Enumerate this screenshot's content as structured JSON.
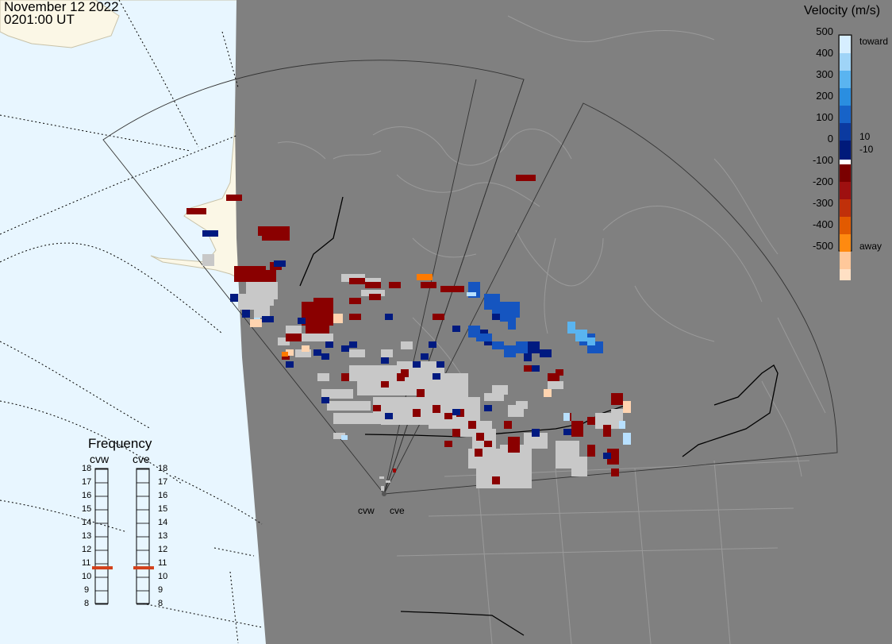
{
  "header": {
    "date": "November 12 2022",
    "time": "0201:00 UT"
  },
  "legend": {
    "title": "Velocity (m/s)",
    "ticks": [
      "500",
      "400",
      "300",
      "200",
      "100",
      "0",
      "-100",
      "-200",
      "-300",
      "-400",
      "-500"
    ],
    "toward_label": "toward",
    "away_label": "away",
    "pos_threshold": "10",
    "neg_threshold": "-10",
    "colors": [
      "#d6eeff",
      "#9fd4f7",
      "#5ab4f0",
      "#2a8ee0",
      "#1763c8",
      "#0b3aa0",
      "#001a7a",
      "#ffffff",
      "#7a0000",
      "#9e1010",
      "#c0300a",
      "#e25a00",
      "#ff8a10",
      "#ffc89a",
      "#ffe0c4"
    ]
  },
  "frequency": {
    "title": "Frequency",
    "radars": [
      "cvw",
      "cve"
    ],
    "scale": [
      "18",
      "17",
      "16",
      "15",
      "14",
      "13",
      "12",
      "11",
      "10",
      "9",
      "8"
    ],
    "selected": [
      10.7,
      10.7
    ]
  },
  "radars": [
    "cvw",
    "cve"
  ],
  "map": {
    "land_color": "#fbf7e6",
    "night_color": "#808080",
    "ocean_color": "#e8f6ff",
    "ground_scatter_color": "#c8c8c8"
  }
}
